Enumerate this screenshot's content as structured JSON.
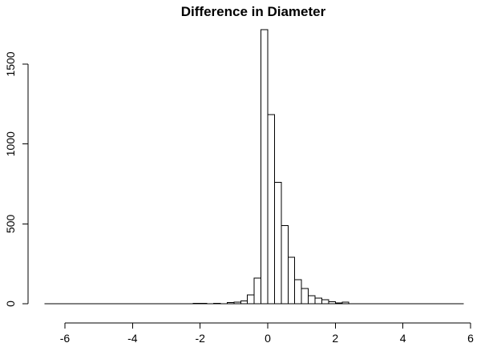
{
  "chart_data": {
    "type": "bar",
    "title": "Difference in Diameter",
    "xlabel": "",
    "ylabel": "",
    "xlim": [
      -6.5,
      6.0
    ],
    "ylim": [
      0,
      1750
    ],
    "x_ticks": [
      -6,
      -4,
      -2,
      0,
      2,
      4,
      6
    ],
    "x_tick_labels": [
      "-6",
      "-4",
      "-2",
      "0",
      "2",
      "4",
      "6"
    ],
    "y_ticks": [
      0,
      500,
      1000,
      1500
    ],
    "y_tick_labels": [
      "0",
      "500",
      "1000",
      "1500"
    ],
    "baseline_range": [
      -6.6,
      5.8
    ],
    "bin_width": 0.2,
    "bins": [
      {
        "start": -2.2,
        "count": 3
      },
      {
        "start": -2.0,
        "count": 3
      },
      {
        "start": -1.6,
        "count": 2
      },
      {
        "start": -1.2,
        "count": 8
      },
      {
        "start": -1.0,
        "count": 10
      },
      {
        "start": -0.8,
        "count": 18
      },
      {
        "start": -0.6,
        "count": 55
      },
      {
        "start": -0.4,
        "count": 160
      },
      {
        "start": -0.2,
        "count": 1715
      },
      {
        "start": 0.0,
        "count": 1185
      },
      {
        "start": 0.2,
        "count": 760
      },
      {
        "start": 0.4,
        "count": 490
      },
      {
        "start": 0.6,
        "count": 290
      },
      {
        "start": 0.8,
        "count": 150
      },
      {
        "start": 1.0,
        "count": 95
      },
      {
        "start": 1.2,
        "count": 50
      },
      {
        "start": 1.4,
        "count": 35
      },
      {
        "start": 1.6,
        "count": 25
      },
      {
        "start": 1.8,
        "count": 12
      },
      {
        "start": 2.0,
        "count": 6
      },
      {
        "start": 2.2,
        "count": 10
      }
    ],
    "grid": false,
    "legend": "none"
  }
}
